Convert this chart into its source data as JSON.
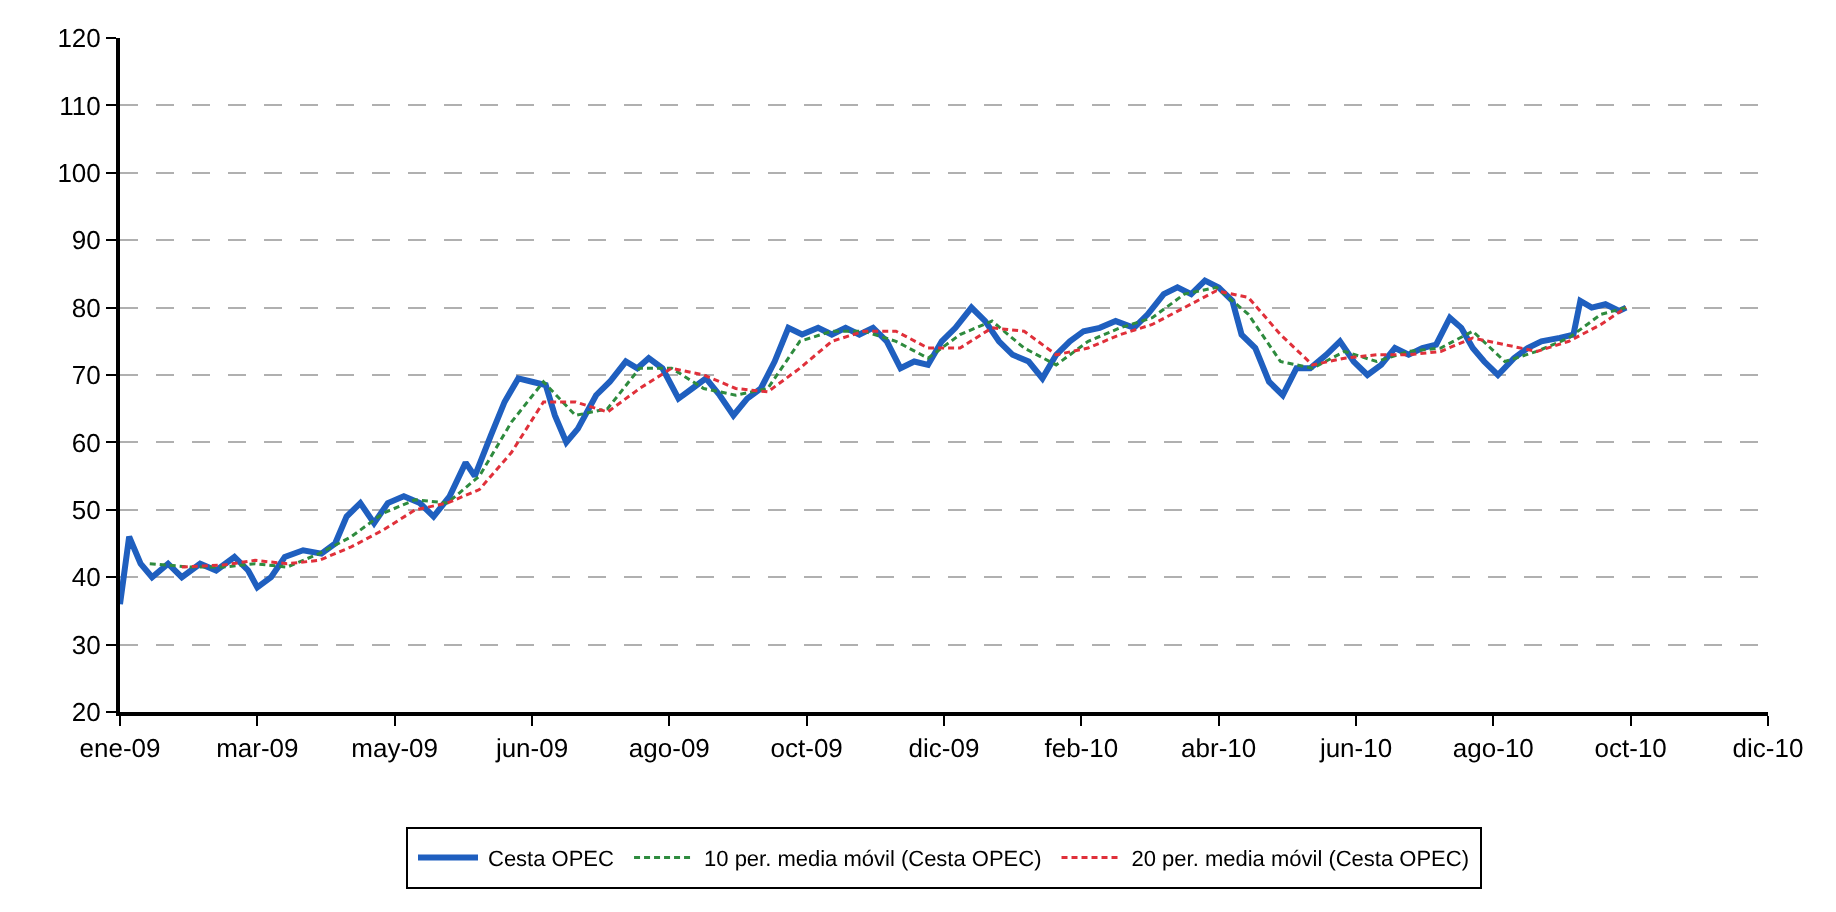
{
  "chart_data": {
    "type": "line",
    "xlim": [
      "2009-01-01",
      "2010-12-22"
    ],
    "xticks": [
      {
        "value": "2009-01-01",
        "label": "ene-09"
      },
      {
        "value": "2009-03-02",
        "label": "mar-09"
      },
      {
        "value": "2009-05-01",
        "label": "may-09"
      },
      {
        "value": "2009-06-30",
        "label": "jun-09"
      },
      {
        "value": "2009-08-29",
        "label": "ago-09"
      },
      {
        "value": "2009-10-28",
        "label": "oct-09"
      },
      {
        "value": "2009-12-27",
        "label": "dic-09"
      },
      {
        "value": "2010-02-25",
        "label": "feb-10"
      },
      {
        "value": "2010-04-26",
        "label": "abr-10"
      },
      {
        "value": "2010-06-25",
        "label": "jun-10"
      },
      {
        "value": "2010-08-24",
        "label": "ago-10"
      },
      {
        "value": "2010-10-23",
        "label": "oct-10"
      },
      {
        "value": "2010-12-22",
        "label": "dic-10"
      }
    ],
    "ylim": [
      20,
      120
    ],
    "yticks": [
      20,
      30,
      40,
      50,
      60,
      70,
      80,
      90,
      100,
      110,
      120
    ],
    "grid": "y",
    "legend": "bottom",
    "series": [
      {
        "name": "Cesta OPEC",
        "color": "#1f5fbf",
        "line_style": "solid",
        "x": [
          "2009-01-01",
          "2009-01-05",
          "2009-01-10",
          "2009-01-15",
          "2009-01-22",
          "2009-01-28",
          "2009-02-05",
          "2009-02-12",
          "2009-02-20",
          "2009-02-26",
          "2009-03-02",
          "2009-03-08",
          "2009-03-14",
          "2009-03-22",
          "2009-03-30",
          "2009-04-05",
          "2009-04-10",
          "2009-04-16",
          "2009-04-22",
          "2009-04-28",
          "2009-05-05",
          "2009-05-12",
          "2009-05-18",
          "2009-05-25",
          "2009-06-01",
          "2009-06-05",
          "2009-06-12",
          "2009-06-18",
          "2009-06-24",
          "2009-06-30",
          "2009-07-06",
          "2009-07-10",
          "2009-07-15",
          "2009-07-20",
          "2009-07-28",
          "2009-08-03",
          "2009-08-10",
          "2009-08-15",
          "2009-08-20",
          "2009-08-26",
          "2009-09-02",
          "2009-09-08",
          "2009-09-14",
          "2009-09-20",
          "2009-09-26",
          "2009-10-02",
          "2009-10-08",
          "2009-10-14",
          "2009-10-20",
          "2009-10-26",
          "2009-11-02",
          "2009-11-08",
          "2009-11-14",
          "2009-11-20",
          "2009-11-26",
          "2009-12-02",
          "2009-12-08",
          "2009-12-14",
          "2009-12-20",
          "2009-12-26",
          "2010-01-01",
          "2010-01-08",
          "2010-01-14",
          "2010-01-20",
          "2010-01-26",
          "2010-02-02",
          "2010-02-08",
          "2010-02-14",
          "2010-02-20",
          "2010-02-26",
          "2010-03-05",
          "2010-03-12",
          "2010-03-20",
          "2010-03-26",
          "2010-04-02",
          "2010-04-08",
          "2010-04-14",
          "2010-04-20",
          "2010-04-26",
          "2010-05-02",
          "2010-05-06",
          "2010-05-12",
          "2010-05-18",
          "2010-05-24",
          "2010-05-30",
          "2010-06-05",
          "2010-06-12",
          "2010-06-18",
          "2010-06-24",
          "2010-06-30",
          "2010-07-06",
          "2010-07-12",
          "2010-07-18",
          "2010-07-24",
          "2010-07-30",
          "2010-08-05",
          "2010-08-10",
          "2010-08-15",
          "2010-08-20",
          "2010-08-26",
          "2010-09-02",
          "2010-09-08",
          "2010-09-14",
          "2010-09-22",
          "2010-09-28",
          "2010-10-01",
          "2010-10-06",
          "2010-10-12",
          "2010-10-18",
          "2010-10-21"
        ],
        "values": [
          36,
          46,
          42,
          40,
          42,
          40,
          42,
          41,
          43,
          41,
          38.5,
          40,
          43,
          44,
          43.5,
          45,
          49,
          51,
          48,
          51,
          52,
          51,
          49,
          52,
          57,
          55,
          61,
          66,
          69.5,
          69,
          68.5,
          64,
          60,
          62,
          67,
          69,
          72,
          71,
          72.5,
          71,
          66.5,
          68,
          69.5,
          67,
          64,
          66.5,
          68,
          72,
          77,
          76,
          77,
          76,
          77,
          76,
          77,
          75,
          71,
          72,
          71.5,
          75,
          77,
          80,
          78,
          75,
          73,
          72,
          69.5,
          73,
          75,
          76.5,
          77,
          78,
          77,
          79,
          82,
          83,
          82,
          84,
          83,
          81,
          76,
          74,
          69,
          67,
          71,
          71,
          73,
          75,
          72,
          70,
          71.5,
          74,
          73,
          74,
          74.5,
          78.5,
          77,
          74,
          72,
          70,
          72.5,
          74,
          75,
          75.5,
          76,
          81,
          80,
          80.5,
          79.5,
          80
        ]
      },
      {
        "name": "10 per. media móvil (Cesta OPEC)",
        "color": "#2e8b3e",
        "line_style": "dashed",
        "x": [
          "2009-01-14",
          "2009-02-01",
          "2009-02-15",
          "2009-03-01",
          "2009-03-15",
          "2009-03-29",
          "2009-04-12",
          "2009-04-26",
          "2009-05-10",
          "2009-05-24",
          "2009-06-07",
          "2009-06-21",
          "2009-07-05",
          "2009-07-19",
          "2009-08-02",
          "2009-08-16",
          "2009-08-30",
          "2009-09-13",
          "2009-09-27",
          "2009-10-11",
          "2009-10-25",
          "2009-11-08",
          "2009-11-22",
          "2009-12-06",
          "2009-12-20",
          "2010-01-03",
          "2010-01-17",
          "2010-01-31",
          "2010-02-14",
          "2010-02-28",
          "2010-03-14",
          "2010-03-28",
          "2010-04-11",
          "2010-04-25",
          "2010-05-09",
          "2010-05-23",
          "2010-06-06",
          "2010-06-20",
          "2010-07-04",
          "2010-07-18",
          "2010-08-01",
          "2010-08-15",
          "2010-08-29",
          "2010-09-12",
          "2010-09-26",
          "2010-10-10",
          "2010-10-21"
        ],
        "values": [
          42,
          41.5,
          41.5,
          42,
          41.5,
          43.5,
          46,
          49.5,
          51.5,
          51,
          55,
          63,
          69,
          64,
          65,
          71,
          71,
          68,
          67,
          68,
          75,
          76.5,
          76.5,
          75,
          72.5,
          76,
          78,
          74,
          71.5,
          75,
          77,
          78.5,
          82,
          83,
          79,
          72,
          71,
          73.5,
          72,
          73.5,
          74,
          76.5,
          72,
          73.5,
          75.5,
          79,
          80
        ]
      },
      {
        "name": "20 per. media móvil (Cesta OPEC)",
        "color": "#e0303a",
        "line_style": "dashed",
        "x": [
          "2009-01-28",
          "2009-02-15",
          "2009-03-01",
          "2009-03-15",
          "2009-03-29",
          "2009-04-12",
          "2009-04-26",
          "2009-05-10",
          "2009-05-24",
          "2009-06-07",
          "2009-06-21",
          "2009-07-05",
          "2009-07-19",
          "2009-08-02",
          "2009-08-16",
          "2009-08-30",
          "2009-09-13",
          "2009-09-27",
          "2009-10-11",
          "2009-10-25",
          "2009-11-08",
          "2009-11-22",
          "2009-12-06",
          "2009-12-20",
          "2010-01-03",
          "2010-01-17",
          "2010-01-31",
          "2010-02-14",
          "2010-02-28",
          "2010-03-14",
          "2010-03-28",
          "2010-04-11",
          "2010-04-25",
          "2010-05-09",
          "2010-05-23",
          "2010-06-06",
          "2010-06-20",
          "2010-07-04",
          "2010-07-18",
          "2010-08-01",
          "2010-08-15",
          "2010-08-29",
          "2010-09-12",
          "2010-09-26",
          "2010-10-10",
          "2010-10-21"
        ],
        "values": [
          41.5,
          41.8,
          42.5,
          42,
          42.5,
          44.5,
          47,
          50,
          51,
          53,
          58.5,
          66,
          66,
          64.5,
          68,
          71,
          70,
          68,
          67.5,
          71,
          75,
          76.5,
          76.5,
          74,
          74,
          77,
          76.5,
          73,
          74,
          76,
          77.5,
          80,
          82.5,
          81.5,
          76,
          71.5,
          72.5,
          73,
          73,
          73.5,
          75.5,
          74.5,
          73.5,
          75,
          77.5,
          80
        ]
      }
    ]
  }
}
